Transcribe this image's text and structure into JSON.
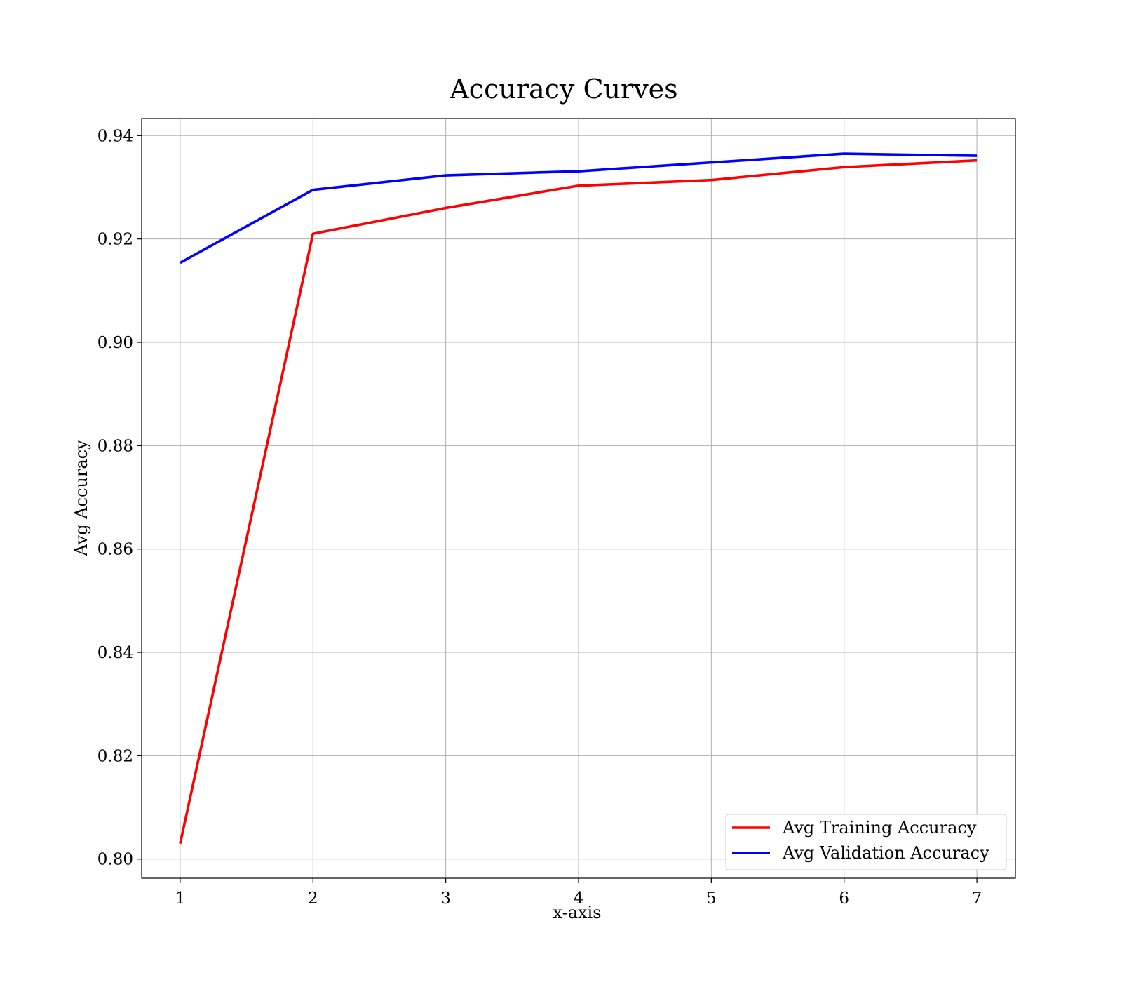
{
  "chart_data": {
    "type": "line",
    "title": "Accuracy Curves",
    "xlabel": "x-axis",
    "ylabel": "Avg Accuracy",
    "x": [
      1,
      2,
      3,
      4,
      5,
      6,
      7
    ],
    "xlim": [
      0.71,
      7.29
    ],
    "ylim": [
      0.7963,
      0.9433
    ],
    "xticks": [
      1,
      2,
      3,
      4,
      5,
      6,
      7
    ],
    "xtick_labels": [
      "1",
      "2",
      "3",
      "4",
      "5",
      "6",
      "7"
    ],
    "yticks": [
      0.8,
      0.82,
      0.84,
      0.86,
      0.88,
      0.9,
      0.92,
      0.94
    ],
    "ytick_labels": [
      "0.80",
      "0.82",
      "0.84",
      "0.86",
      "0.88",
      "0.90",
      "0.92",
      "0.94"
    ],
    "grid": true,
    "legend_position": "lower-right",
    "series": [
      {
        "name": "Avg Training Accuracy",
        "color": "#ff0000",
        "values": [
          0.803,
          0.921,
          0.926,
          0.9303,
          0.9314,
          0.9339,
          0.9352
        ]
      },
      {
        "name": "Avg Validation Accuracy",
        "color": "#0000ff",
        "values": [
          0.9154,
          0.9295,
          0.9323,
          0.9331,
          0.9348,
          0.9365,
          0.9361
        ]
      }
    ]
  }
}
